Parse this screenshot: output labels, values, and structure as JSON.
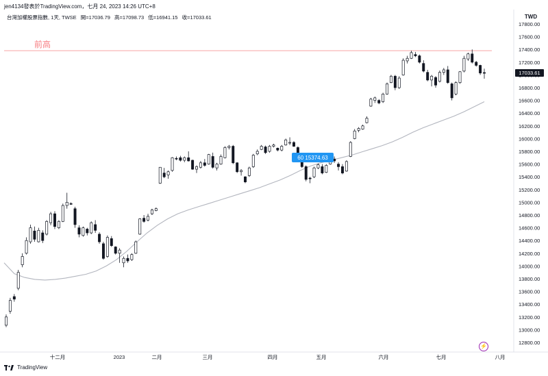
{
  "header": {
    "snapshot_line": "jen4134發表於TradingView.com，七月 24, 2023 14:26 UTC+8"
  },
  "legend": {
    "symbol": "台灣加權股票指數, 1天, TWSE",
    "open": "開=17036.79",
    "high": "高=17098.73",
    "low": "低=16941.15",
    "close": "收=17033.61"
  },
  "price_axis": {
    "currency": "TWD",
    "last_price": "17033.61",
    "ticks": [
      "17800.00",
      "17600.00",
      "17400.00",
      "17200.00",
      "17000.00",
      "16800.00",
      "16600.00",
      "16400.00",
      "16200.00",
      "16000.00",
      "15800.00",
      "15600.00",
      "15400.00",
      "15200.00",
      "15000.00",
      "14800.00",
      "14600.00",
      "14400.00",
      "14200.00",
      "14000.00",
      "13800.00",
      "13600.00",
      "13400.00",
      "13200.00",
      "13000.00",
      "12800.00"
    ]
  },
  "time_axis": {
    "labels": [
      "十二月",
      "2023",
      "二月",
      "三月",
      "四月",
      "五月",
      "六月",
      "七月",
      "八月"
    ]
  },
  "annotations": {
    "prev_high_label": "前高",
    "prev_high_price": 17380,
    "tooltip_text": "60  15374.63"
  },
  "footer": {
    "brand": "TradingView"
  },
  "colors": {
    "up": "#ffffff",
    "down": "#131722",
    "wick": "#131722",
    "ma": "#b2b5be",
    "hline": "#f7a3a3",
    "hline_text": "#f77c80",
    "tooltip_bg": "#2196f3"
  },
  "chart_data": {
    "type": "candlestick",
    "title": "台灣加權股票指數, 1天, TWSE",
    "ylabel": "TWD",
    "ylim": [
      12650,
      17900
    ],
    "x": [
      "十二月",
      "2023",
      "二月",
      "三月",
      "四月",
      "五月",
      "六月",
      "七月",
      "八月"
    ],
    "candles_ohlc": [
      [
        13070,
        13240,
        13040,
        13200
      ],
      [
        13290,
        13500,
        13250,
        13460
      ],
      [
        13520,
        13560,
        13440,
        13480
      ],
      [
        13650,
        13940,
        13620,
        13900
      ],
      [
        14020,
        14200,
        13980,
        14150
      ],
      [
        14200,
        14450,
        14180,
        14400
      ],
      [
        14380,
        14650,
        14350,
        14600
      ],
      [
        14550,
        14620,
        14380,
        14420
      ],
      [
        14380,
        14600,
        14370,
        14560
      ],
      [
        14520,
        14560,
        14360,
        14400
      ],
      [
        14500,
        14720,
        14480,
        14700
      ],
      [
        14680,
        14850,
        14640,
        14820
      ],
      [
        14820,
        14860,
        14580,
        14620
      ],
      [
        14600,
        14720,
        14580,
        14700
      ],
      [
        14700,
        14980,
        14690,
        14950
      ],
      [
        14950,
        15150,
        14900,
        15000
      ],
      [
        14980,
        15000,
        14960,
        14970
      ],
      [
        14900,
        14930,
        14600,
        14650
      ],
      [
        14600,
        14640,
        14450,
        14500
      ],
      [
        14480,
        14620,
        14460,
        14600
      ],
      [
        14580,
        14600,
        14480,
        14520
      ],
      [
        14520,
        14700,
        14500,
        14680
      ],
      [
        14650,
        14720,
        14520,
        14560
      ],
      [
        14500,
        14530,
        14350,
        14380
      ],
      [
        14350,
        14380,
        14100,
        14120
      ],
      [
        14150,
        14480,
        14130,
        14450
      ],
      [
        14430,
        14470,
        14300,
        14320
      ],
      [
        14300,
        14310,
        14180,
        14200
      ],
      [
        14200,
        14280,
        14050,
        14250
      ],
      [
        14050,
        14150,
        13980,
        14120
      ],
      [
        14120,
        14180,
        14050,
        14080
      ],
      [
        14100,
        14200,
        14080,
        14180
      ],
      [
        14200,
        14400,
        14190,
        14380
      ],
      [
        14500,
        14750,
        14490,
        14740
      ],
      [
        14750,
        14800,
        14680,
        14700
      ],
      [
        14720,
        14820,
        14700,
        14780
      ],
      [
        14820,
        14900,
        14800,
        14880
      ],
      [
        14870,
        14920,
        14860,
        14900
      ],
      [
        15300,
        15550,
        15290,
        15550
      ],
      [
        15460,
        15540,
        15380,
        15400
      ],
      [
        15430,
        15500,
        15370,
        15480
      ],
      [
        15500,
        15710,
        15480,
        15700
      ],
      [
        15690,
        15720,
        15660,
        15680
      ],
      [
        15700,
        15730,
        15640,
        15660
      ],
      [
        15660,
        15720,
        15630,
        15700
      ],
      [
        15700,
        15800,
        15640,
        15650
      ],
      [
        15660,
        15670,
        15510,
        15520
      ],
      [
        15520,
        15580,
        15460,
        15560
      ],
      [
        15550,
        15650,
        15530,
        15620
      ],
      [
        15620,
        15680,
        15560,
        15580
      ],
      [
        15600,
        15760,
        15590,
        15750
      ],
      [
        15720,
        15780,
        15530,
        15550
      ],
      [
        15540,
        15620,
        15500,
        15600
      ],
      [
        15600,
        15750,
        15590,
        15720
      ],
      [
        15700,
        15880,
        15690,
        15860
      ],
      [
        15860,
        15900,
        15830,
        15880
      ],
      [
        15880,
        15900,
        15600,
        15620
      ],
      [
        15620,
        15630,
        15460,
        15480
      ],
      [
        15480,
        15520,
        15420,
        15500
      ],
      [
        15400,
        15410,
        15300,
        15320
      ],
      [
        15420,
        15560,
        15400,
        15540
      ],
      [
        15560,
        15760,
        15540,
        15740
      ],
      [
        15760,
        15830,
        15740,
        15800
      ],
      [
        15830,
        15900,
        15820,
        15880
      ],
      [
        15870,
        15890,
        15760,
        15780
      ],
      [
        15800,
        15900,
        15780,
        15880
      ],
      [
        15880,
        15920,
        15860,
        15900
      ],
      [
        15850,
        15860,
        15800,
        15820
      ],
      [
        15820,
        15900,
        15800,
        15880
      ],
      [
        15900,
        16000,
        15890,
        15980
      ],
      [
        15930,
        16020,
        15900,
        15940
      ],
      [
        15940,
        15960,
        15870,
        15880
      ],
      [
        15860,
        15880,
        15750,
        15760
      ],
      [
        15700,
        15720,
        15540,
        15560
      ],
      [
        15560,
        15580,
        15330,
        15360
      ],
      [
        15380,
        15400,
        15300,
        15370
      ],
      [
        15400,
        15560,
        15380,
        15540
      ],
      [
        15540,
        15610,
        15520,
        15590
      ],
      [
        15560,
        15600,
        15440,
        15460
      ],
      [
        15470,
        15600,
        15460,
        15580
      ],
      [
        15600,
        15720,
        15590,
        15700
      ],
      [
        15680,
        15720,
        15620,
        15650
      ],
      [
        15600,
        15630,
        15500,
        15560
      ],
      [
        15560,
        15600,
        15440,
        15460
      ],
      [
        15490,
        15660,
        15480,
        15640
      ],
      [
        15720,
        15960,
        15710,
        15940
      ],
      [
        16000,
        16150,
        15990,
        16120
      ],
      [
        16130,
        16180,
        16100,
        16160
      ],
      [
        16150,
        16220,
        16140,
        16200
      ],
      [
        16250,
        16350,
        16240,
        16320
      ],
      [
        16510,
        16640,
        16500,
        16620
      ],
      [
        16600,
        16660,
        16560,
        16640
      ],
      [
        16600,
        16620,
        16540,
        16560
      ],
      [
        16580,
        16720,
        16560,
        16700
      ],
      [
        16700,
        16880,
        16690,
        16860
      ],
      [
        16880,
        17000,
        16870,
        16980
      ],
      [
        16980,
        17000,
        16760,
        16800
      ],
      [
        16800,
        16980,
        16780,
        16950
      ],
      [
        17000,
        17260,
        16990,
        17230
      ],
      [
        17220,
        17300,
        17180,
        17260
      ],
      [
        17260,
        17380,
        17250,
        17350
      ],
      [
        17320,
        17360,
        17280,
        17300
      ],
      [
        17300,
        17320,
        17180,
        17200
      ],
      [
        17180,
        17230,
        17040,
        17060
      ],
      [
        17040,
        17080,
        16900,
        16920
      ],
      [
        16920,
        17000,
        16820,
        16980
      ],
      [
        16960,
        16980,
        16800,
        16840
      ],
      [
        16900,
        17070,
        16880,
        17040
      ],
      [
        17040,
        17110,
        17000,
        17080
      ],
      [
        17080,
        17140,
        16860,
        16880
      ],
      [
        16860,
        16880,
        16600,
        16640
      ],
      [
        16700,
        16900,
        16680,
        16880
      ],
      [
        16880,
        17060,
        16860,
        17050
      ],
      [
        17060,
        17300,
        17040,
        17260
      ],
      [
        17250,
        17350,
        17220,
        17330
      ],
      [
        17330,
        17400,
        17180,
        17200
      ],
      [
        17200,
        17220,
        17130,
        17150
      ],
      [
        17150,
        17160,
        17000,
        17030
      ],
      [
        17036.79,
        17098.73,
        16941.15,
        17033.61
      ]
    ],
    "ma_series": [
      {
        "name": "",
        "values": [
          14050,
          13880,
          13820,
          13790,
          13780,
          13790,
          13810,
          13840,
          13870,
          13920,
          14000,
          14100,
          14230,
          14380,
          14520,
          14640,
          14740,
          14820,
          14880,
          14930,
          14980,
          15030,
          15080,
          15130,
          15180,
          15230,
          15290,
          15350,
          15420,
          15500,
          15570,
          15620,
          15660,
          15700,
          15740,
          15790,
          15840,
          15890,
          15950,
          16020,
          16100,
          16170,
          16230,
          16290,
          16350,
          16420,
          16500,
          16580
        ]
      }
    ]
  }
}
